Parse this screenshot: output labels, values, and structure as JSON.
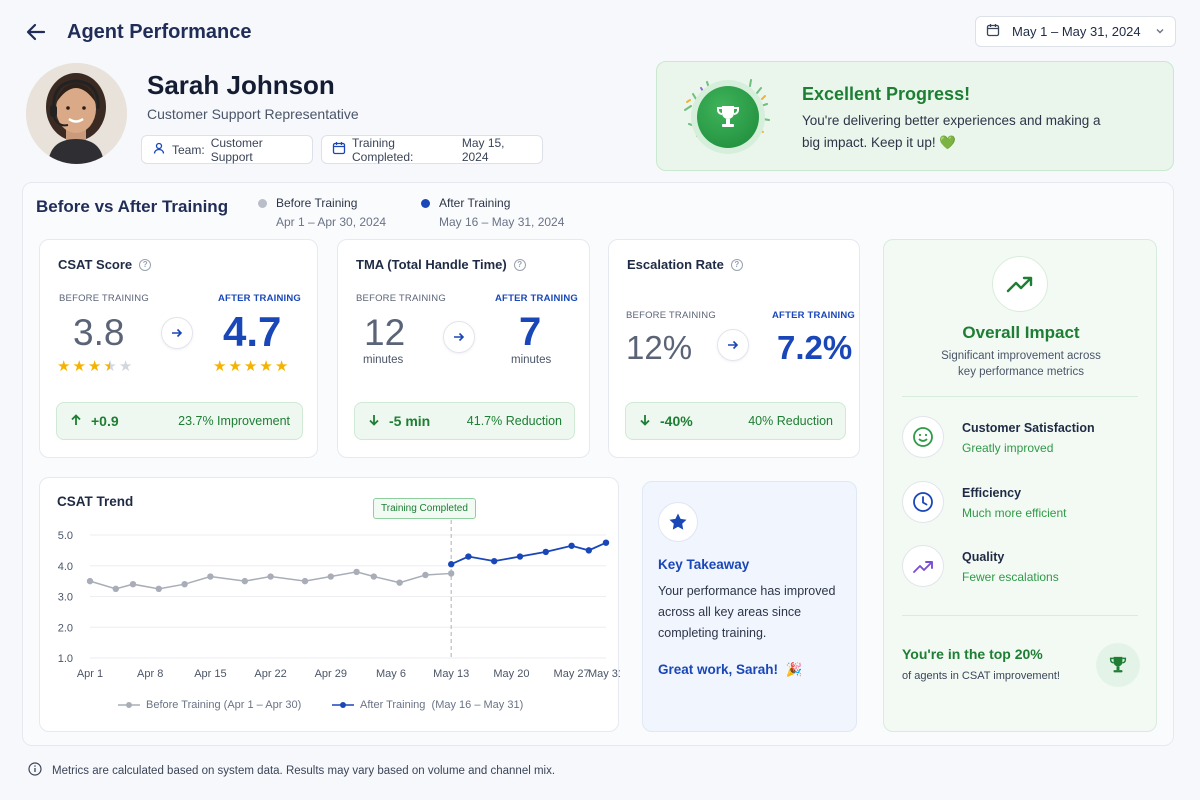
{
  "header": {
    "title": "Agent Performance",
    "date_range": "May 1 – May 31, 2024"
  },
  "profile": {
    "name": "Sarah Johnson",
    "role": "Customer Support Representative",
    "team_label": "Team:",
    "team_value": "Customer Support",
    "training_label": "Training Completed:",
    "training_value": "May 15, 2024"
  },
  "banner": {
    "title": "Excellent Progress!",
    "text": "You're delivering better experiences and making a big impact. Keep it up!",
    "heart": "💚"
  },
  "comparison": {
    "title": "Before vs After Training",
    "before_label": "Before Training",
    "before_range": "Apr 1 – Apr 30, 2024",
    "after_label": "After Training",
    "after_range": "May 16 – May 31, 2024",
    "before_color": "#b9bec8",
    "after_color": "#1a47b8"
  },
  "metrics": [
    {
      "title": "CSAT Score",
      "before_caption": "BEFORE TRAINING",
      "after_caption": "AFTER TRAINING",
      "before_value": "3.8",
      "after_value": "4.7",
      "before_stars": 3.5,
      "after_stars": 5,
      "delta": "+0.9",
      "change": "23.7% Improvement"
    },
    {
      "title": "TMA (Total Handle Time)",
      "before_caption": "BEFORE TRAINING",
      "after_caption": "AFTER TRAINING",
      "before_value": "12",
      "after_value": "7",
      "before_unit": "minutes",
      "after_unit": "minutes",
      "delta": "-5 min",
      "change": "41.7% Reduction"
    },
    {
      "title": "Escalation Rate",
      "before_caption": "BEFORE TRAINING",
      "after_caption": "AFTER TRAINING",
      "before_value": "12%",
      "after_value": "7.2%",
      "delta": "-40%",
      "change": "40% Reduction"
    }
  ],
  "trend": {
    "title": "CSAT Trend",
    "annotation": "Training Completed",
    "legend_before": "Before Training (Apr 1 – Apr 30)",
    "legend_after": "After Training  (May 16 – May 31)"
  },
  "chart_data": {
    "type": "line",
    "ylim": [
      1.0,
      5.0
    ],
    "yticks": [
      "5.0",
      "4.0",
      "3.0",
      "2.0",
      "1.0"
    ],
    "xticks": [
      "Apr 1",
      "Apr 8",
      "Apr 15",
      "Apr 22",
      "Apr 29",
      "May 6",
      "May 13",
      "May 20",
      "May 27",
      "May 31"
    ],
    "marker": "Training Completed",
    "series": [
      {
        "name": "Before Training (Apr 1 – Apr 30)",
        "color": "#a8adb7",
        "x": [
          "Apr 1",
          "Apr 4",
          "Apr 6",
          "Apr 9",
          "Apr 12",
          "Apr 15",
          "Apr 19",
          "Apr 22",
          "Apr 26",
          "Apr 29",
          "May 2",
          "May 4",
          "May 7",
          "May 10",
          "May 13"
        ],
        "values": [
          3.5,
          3.25,
          3.4,
          3.25,
          3.4,
          3.65,
          3.5,
          3.65,
          3.5,
          3.65,
          3.8,
          3.65,
          3.45,
          3.7,
          3.75
        ]
      },
      {
        "name": "After Training (May 16 – May 31)",
        "color": "#1a47b8",
        "x": [
          "May 13",
          "May 15",
          "May 18",
          "May 21",
          "May 24",
          "May 27",
          "May 29",
          "May 31"
        ],
        "values": [
          4.05,
          4.3,
          4.15,
          4.3,
          4.45,
          4.65,
          4.5,
          4.75
        ]
      }
    ]
  },
  "takeaway": {
    "title": "Key Takeaway",
    "text": "Your performance has improved across all key areas since completing training.",
    "cta": "Great work, Sarah!",
    "emoji": "🎉"
  },
  "impact": {
    "title": "Overall Impact",
    "subtitle": "Significant improvement across key performance metrics",
    "items": [
      {
        "title": "Customer Satisfaction",
        "sub": "Greatly improved",
        "icon": "smile-icon"
      },
      {
        "title": "Efficiency",
        "sub": "Much more efficient",
        "icon": "clock-icon"
      },
      {
        "title": "Quality",
        "sub": "Fewer escalations",
        "icon": "trend-up-icon"
      }
    ],
    "top_title": "You're in the top 20%",
    "top_sub": "of agents in CSAT improvement!"
  },
  "footnote": "Metrics are calculated based on system data. Results may vary based on volume and channel mix."
}
